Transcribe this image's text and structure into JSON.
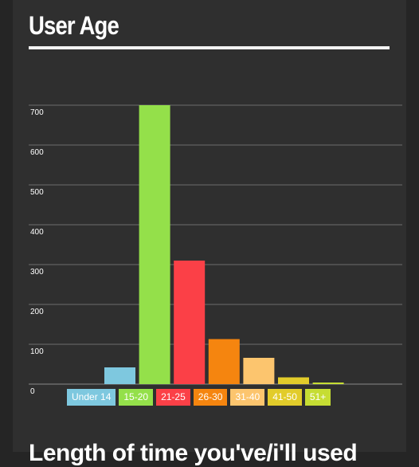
{
  "page": {
    "title": "User Age",
    "next_title": "Length of time you've/i'll used"
  },
  "chart_data": {
    "type": "bar",
    "title": "User Age",
    "categories": [
      "Under 14",
      "15-20",
      "21-25",
      "26-30",
      "31-40",
      "41-50",
      "51+"
    ],
    "values": [
      42,
      700,
      310,
      113,
      66,
      17,
      4
    ],
    "colors": [
      "#7ec8df",
      "#94e04a",
      "#fb4047",
      "#f5850f",
      "#fcc56e",
      "#e2cc2a",
      "#c6dd33"
    ],
    "ylim": [
      0,
      700
    ],
    "yticks": [
      0,
      100,
      200,
      300,
      400,
      500,
      600,
      700
    ],
    "grid": true,
    "legend_position": "bottom"
  }
}
